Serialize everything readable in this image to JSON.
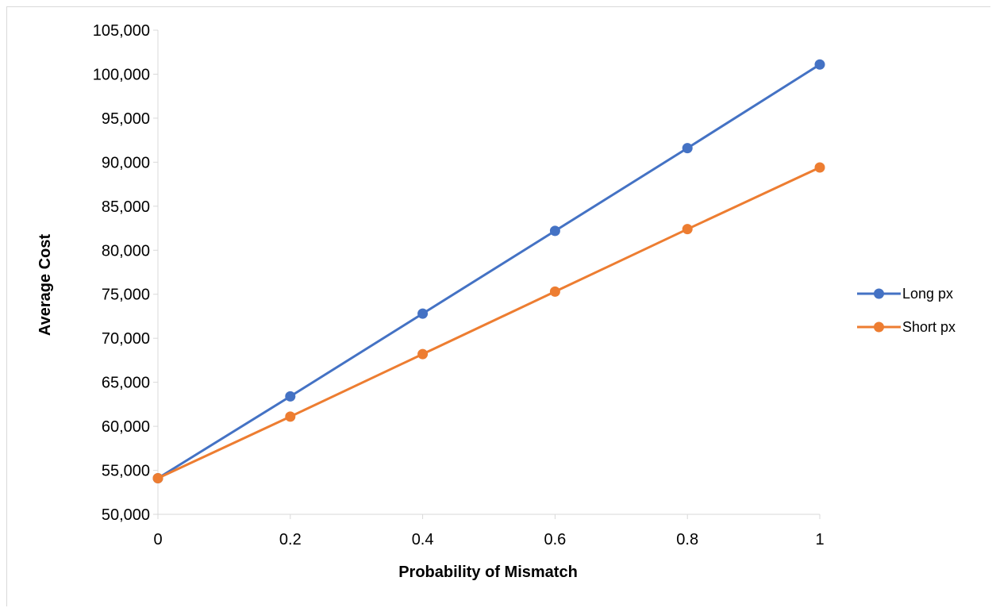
{
  "chart_data": {
    "type": "line",
    "title": "",
    "xlabel": "Probability of Mismatch",
    "ylabel": "Average Cost",
    "x": [
      0,
      0.2,
      0.4,
      0.6,
      0.8,
      1
    ],
    "x_tick_labels": [
      "0",
      "0.2",
      "0.4",
      "0.6",
      "0.8",
      "1"
    ],
    "xlim": [
      0,
      1
    ],
    "ylim": [
      50000,
      105000
    ],
    "y_tick_labels": [
      "50,000",
      "55,000",
      "60,000",
      "65,000",
      "70,000",
      "75,000",
      "80,000",
      "85,000",
      "90,000",
      "95,000",
      "100,000",
      "105,000"
    ],
    "grid": false,
    "legend_position": "right",
    "series": [
      {
        "name": "Long px",
        "color": "#4472c4",
        "values": [
          54100,
          63400,
          72800,
          82200,
          91600,
          101100
        ]
      },
      {
        "name": "Short px",
        "color": "#ed7d31",
        "values": [
          54100,
          61100,
          68200,
          75300,
          82400,
          89400
        ]
      }
    ]
  }
}
